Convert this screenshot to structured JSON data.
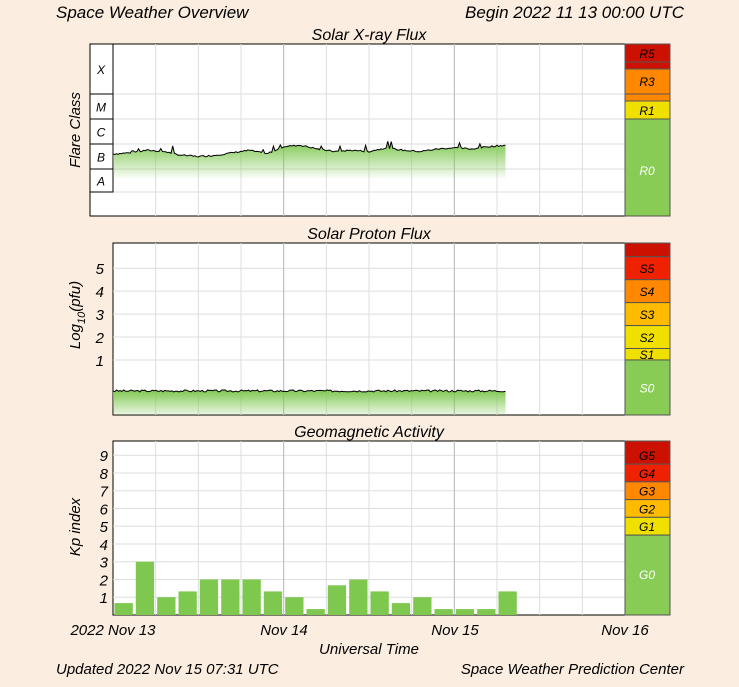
{
  "header": {
    "title": "Space Weather Overview",
    "begin": "Begin 2022 11 13 00:00 UTC"
  },
  "footer": {
    "updated": "Updated 2022 Nov 15 07:31 UTC",
    "source": "Space Weather Prediction Center"
  },
  "x_axis": {
    "label": "Universal Time",
    "ticks": [
      "2022 Nov 13",
      "Nov 14",
      "Nov 15",
      "Nov 16"
    ]
  },
  "chart_data": [
    {
      "type": "area",
      "title": "Solar X-ray Flux",
      "ylabel": "Flare Class",
      "y_scale": "log",
      "y_classes": [
        "A",
        "B",
        "C",
        "M",
        "X"
      ],
      "xlim_days": [
        0,
        3
      ],
      "x_days": [
        0.0,
        0.1,
        0.2,
        0.3,
        0.4,
        0.5,
        0.6,
        0.7,
        0.8,
        0.9,
        1.0,
        1.1,
        1.2,
        1.3,
        1.4,
        1.5,
        1.6,
        1.7,
        1.8,
        1.9,
        2.0,
        2.1,
        2.2,
        2.3
      ],
      "class_level": [
        1.6,
        1.65,
        1.75,
        1.7,
        1.55,
        1.5,
        1.55,
        1.65,
        1.75,
        1.6,
        1.9,
        1.95,
        1.8,
        1.7,
        1.75,
        1.7,
        1.85,
        1.75,
        1.7,
        1.8,
        1.85,
        1.8,
        1.9,
        1.95
      ],
      "color": "#7ec850",
      "scale_labels": [
        "R5",
        "R3",
        "R1",
        "R0"
      ],
      "scale_colors": [
        "#cc1100",
        "#ff8800",
        "#f0e000",
        "#88cc55"
      ]
    },
    {
      "type": "area",
      "title": "Solar Proton Flux",
      "ylabel": "Log10(pfu)",
      "ylim": [
        -1.4,
        6.1
      ],
      "yticks": [
        1,
        2,
        3,
        4,
        5
      ],
      "x_days": [
        0.0,
        2.3
      ],
      "values": [
        -0.35,
        -0.35
      ],
      "color": "#7ec850",
      "scale_labels": [
        "S5",
        "S4",
        "S3",
        "S2",
        "S1",
        "S0"
      ],
      "scale_colors": [
        "#cc1100",
        "#ee2200",
        "#ff8800",
        "#ffbb00",
        "#f0e000",
        "#88cc55"
      ]
    },
    {
      "type": "bar",
      "title": "Geomagnetic Activity",
      "ylabel": "Kp index",
      "ylim": [
        0,
        9.8
      ],
      "yticks": [
        1,
        2,
        3,
        4,
        5,
        6,
        7,
        8,
        9
      ],
      "bar_width_days": 0.125,
      "x_days": [
        0.0,
        0.125,
        0.25,
        0.375,
        0.5,
        0.625,
        0.75,
        0.875,
        1.0,
        1.125,
        1.25,
        1.375,
        1.5,
        1.625,
        1.75,
        1.875,
        2.0,
        2.125,
        2.25
      ],
      "values": [
        0.67,
        3.0,
        1.0,
        1.33,
        2.0,
        2.0,
        2.0,
        1.33,
        1.0,
        0.33,
        1.67,
        2.0,
        1.33,
        0.67,
        1.0,
        0.33,
        0.33,
        0.33,
        1.33
      ],
      "color": "#7ec850",
      "scale_labels": [
        "G5",
        "G4",
        "G3",
        "G2",
        "G1",
        "G0"
      ],
      "scale_colors": [
        "#cc1100",
        "#ee2200",
        "#ff8800",
        "#ffbb00",
        "#f0e000",
        "#88cc55"
      ]
    }
  ]
}
